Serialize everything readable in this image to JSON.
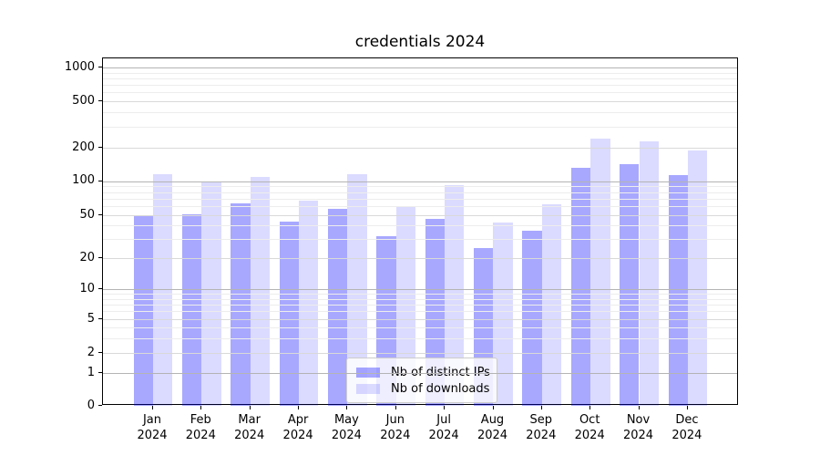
{
  "title": "credentials 2024",
  "chart_data": {
    "type": "bar",
    "title": "credentials 2024",
    "yscale": "symlog",
    "grid": true,
    "y_ticks": [
      0,
      1,
      2,
      5,
      10,
      20,
      50,
      100,
      200,
      500,
      1000
    ],
    "ylim": [
      0,
      1300
    ],
    "legend_position": "lower center",
    "categories": [
      "Jan 2024",
      "Feb 2024",
      "Mar 2024",
      "Apr 2024",
      "May 2024",
      "Jun 2024",
      "Jul 2024",
      "Aug 2024",
      "Sep 2024",
      "Oct 2024",
      "Nov 2024",
      "Dec 2024"
    ],
    "series": [
      {
        "name": "Nb of distinct IPs",
        "color": "rgba(0,0,255,0.34)",
        "color_hex_on_white": "#a8a8ff",
        "values": [
          49,
          51,
          64,
          44,
          57,
          32,
          46,
          25,
          36,
          131,
          142,
          114
        ]
      },
      {
        "name": "Nb of downloads",
        "color": "rgba(0,0,255,0.14)",
        "color_hex_on_white": "#dbdbff",
        "values": [
          115,
          100,
          110,
          67,
          116,
          60,
          92,
          43,
          62,
          240,
          225,
          190
        ]
      }
    ]
  }
}
